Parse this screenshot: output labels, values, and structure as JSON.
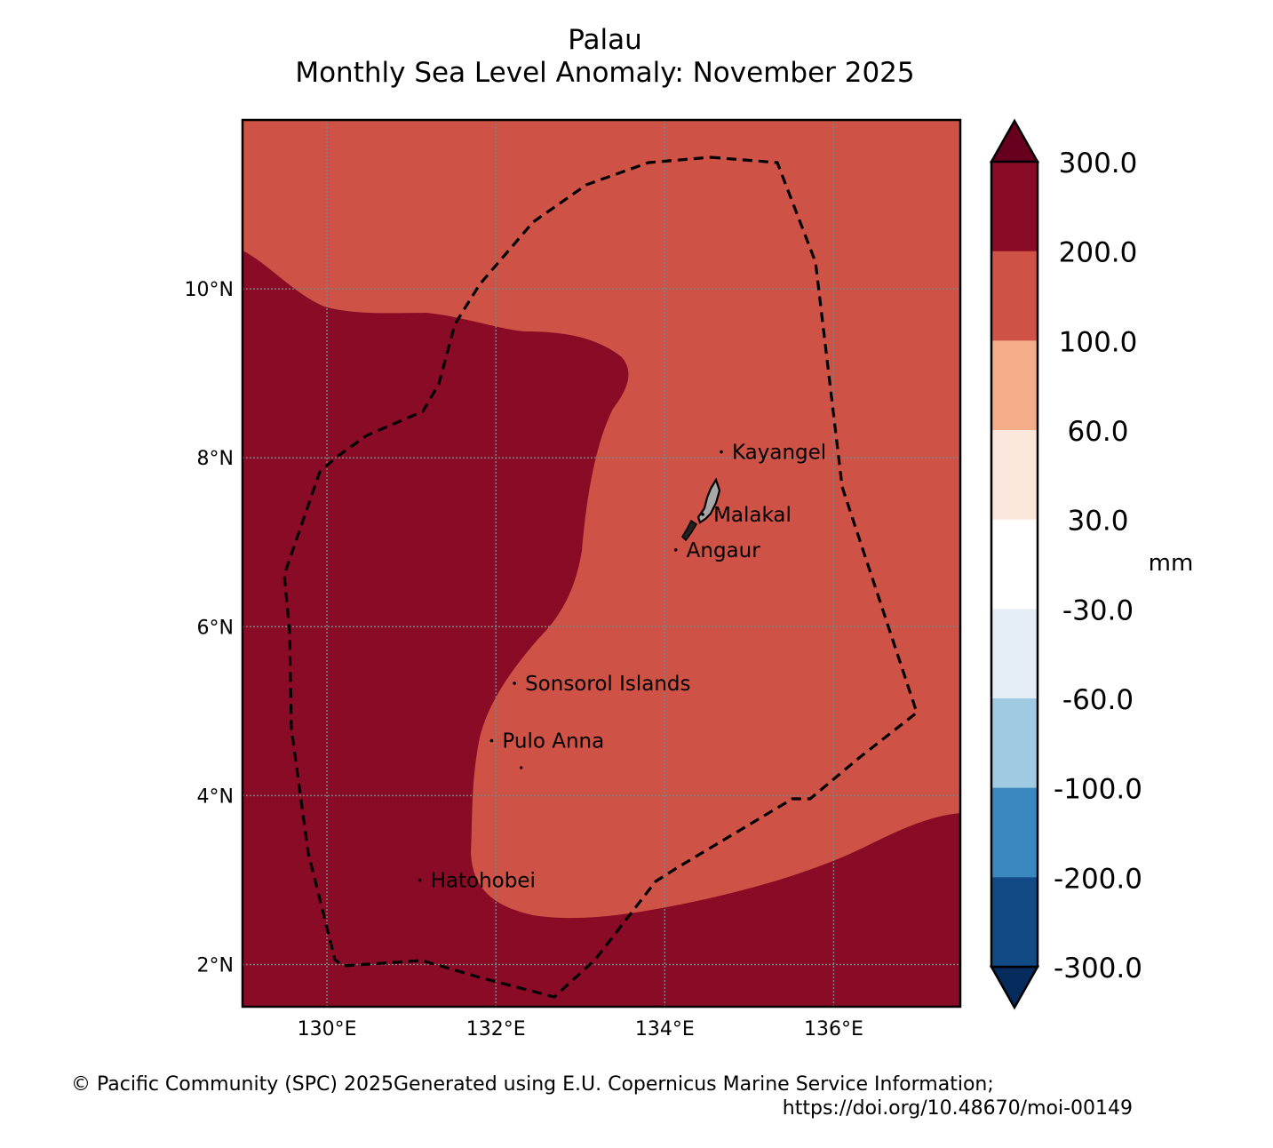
{
  "title": {
    "line1": "Palau",
    "line2": "Monthly Sea Level Anomaly: November 2025"
  },
  "map": {
    "lon_range": [
      129.0,
      137.5
    ],
    "lat_range": [
      1.5,
      12.0
    ],
    "x_ticks": [
      {
        "lon": 130,
        "label": "130°E"
      },
      {
        "lon": 132,
        "label": "132°E"
      },
      {
        "lon": 134,
        "label": "134°E"
      },
      {
        "lon": 136,
        "label": "136°E"
      }
    ],
    "y_ticks": [
      {
        "lat": 10,
        "label": "10°N"
      },
      {
        "lat": 8,
        "label": "8°N"
      },
      {
        "lat": 6,
        "label": "6°N"
      },
      {
        "lat": 4,
        "label": "4°N"
      },
      {
        "lat": 2,
        "label": "2°N"
      }
    ],
    "places": [
      {
        "name": "Kayangel",
        "lon": 134.67,
        "lat": 8.07
      },
      {
        "name": "Malakal",
        "lon": 134.45,
        "lat": 7.33
      },
      {
        "name": "Angaur",
        "lon": 134.13,
        "lat": 6.91
      },
      {
        "name": "Sonsorol Islands",
        "lon": 132.22,
        "lat": 5.33
      },
      {
        "name": "Pulo Anna",
        "lon": 131.95,
        "lat": 4.65
      },
      {
        "name": "Hatohobei",
        "lon": 131.1,
        "lat": 3.0
      }
    ],
    "background_color": "#ce5246",
    "anomaly_region_color": "#8a0b25"
  },
  "colorbar": {
    "unit_label": "mm",
    "levels": [
      {
        "label": "300.0",
        "color": "#8a0b25"
      },
      {
        "label": "200.0",
        "color": "#ce5246"
      },
      {
        "label": "100.0",
        "color": "#f4ac89"
      },
      {
        "label": "60.0",
        "color": "#fbe6dc"
      },
      {
        "label": "30.0",
        "color": "#ffffff"
      },
      {
        "label": "-30.0",
        "color": "#e5edf5"
      },
      {
        "label": "-60.0",
        "color": "#9fcae1"
      },
      {
        "label": "-100.0",
        "color": "#3b87c0"
      },
      {
        "label": "-200.0",
        "color": "#114a84"
      },
      {
        "label": "-300.0",
        "color": "#062b5d"
      }
    ],
    "over_color": "#67001f",
    "under_color": "#062b5d"
  },
  "credits": {
    "line1": "© Pacific Community (SPC) 2025Generated using E.U. Copernicus Marine Service Information;",
    "line2": "https://doi.org/10.48670/moi-00149"
  }
}
